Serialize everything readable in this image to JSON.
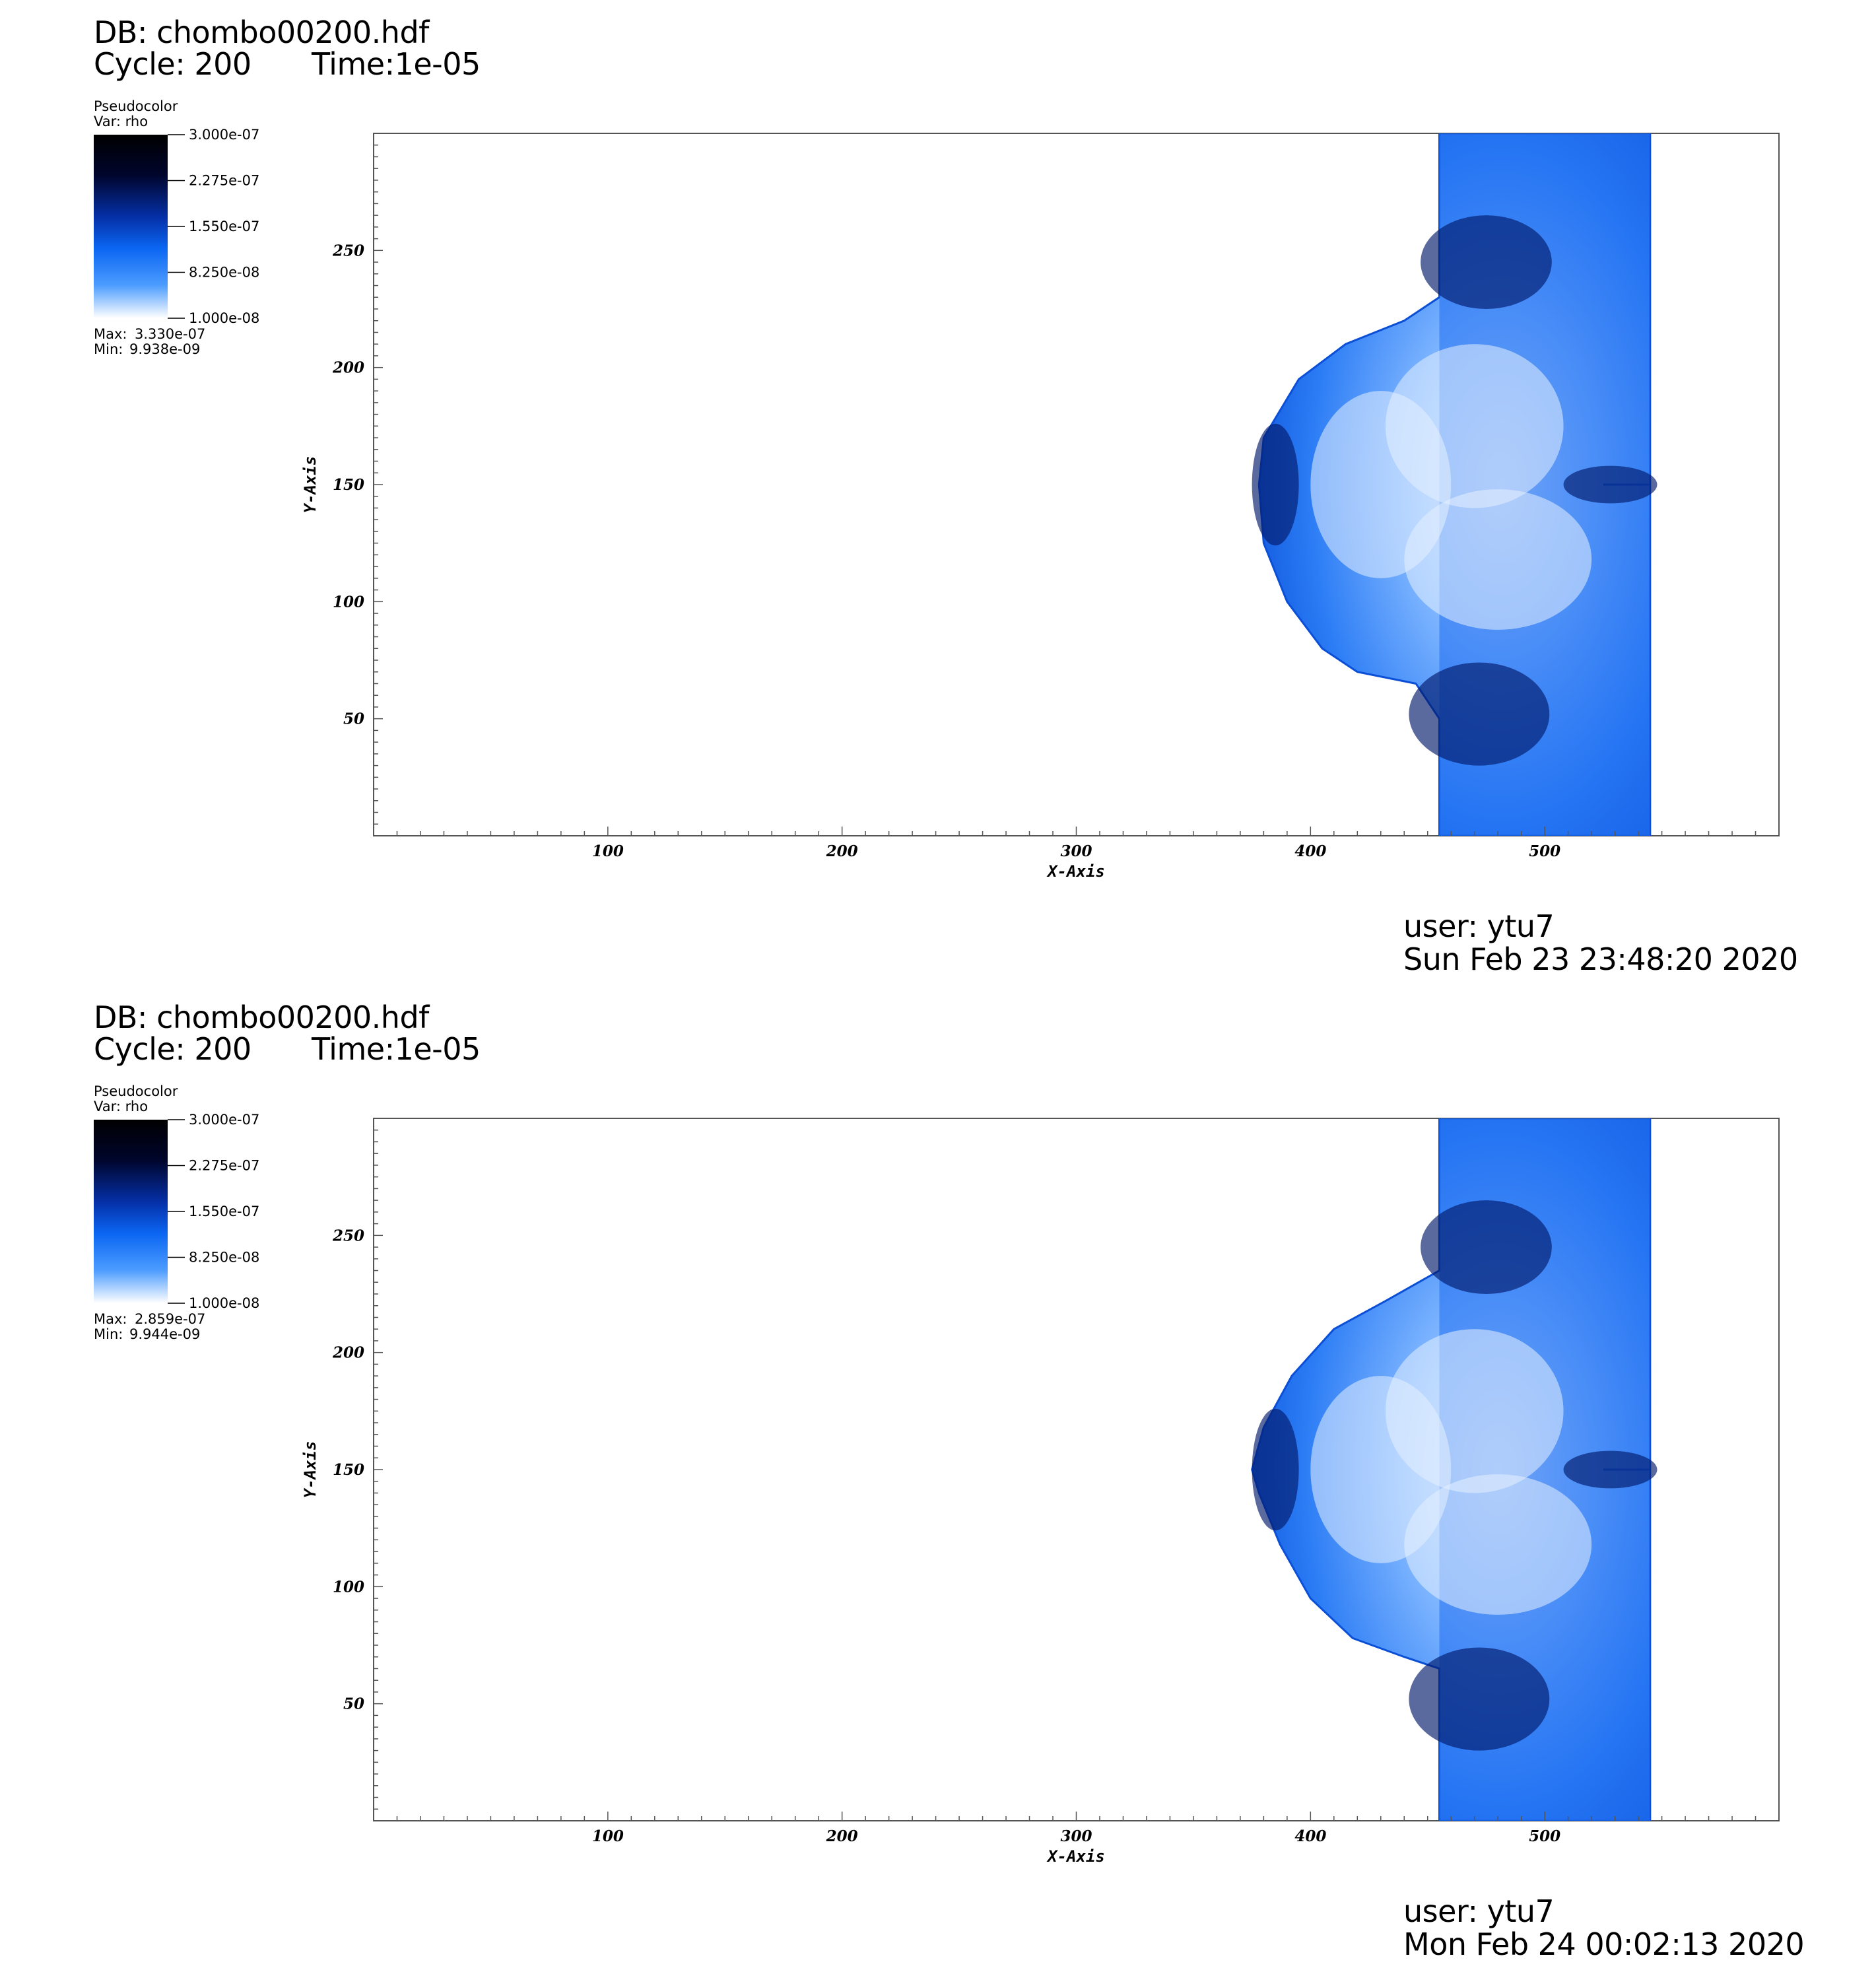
{
  "colors": {
    "accent_blue": "#0a5ee8",
    "dark_navy": "#000428",
    "white": "#ffffff"
  },
  "panels": [
    {
      "db_label": "DB: chombo00200.hdf",
      "cycle_label": "Cycle: 200",
      "time_label": "Time:1e-05",
      "legend": {
        "title": "Pseudocolor",
        "var": "Var: rho",
        "ticks": [
          "3.000e-07",
          "2.275e-07",
          "1.550e-07",
          "8.250e-08",
          "1.000e-08"
        ],
        "max_label": "Max:",
        "max_value": "3.330e-07",
        "min_label": "Min:",
        "min_value": "9.938e-09"
      },
      "user": "user: ytu7",
      "timestamp": "Sun Feb 23 23:48:20 2020"
    },
    {
      "db_label": "DB: chombo00200.hdf",
      "cycle_label": "Cycle: 200",
      "time_label": "Time:1e-05",
      "legend": {
        "title": "Pseudocolor",
        "var": "Var: rho",
        "ticks": [
          "3.000e-07",
          "2.275e-07",
          "1.550e-07",
          "8.250e-08",
          "1.000e-08"
        ],
        "max_label": "Max:",
        "max_value": "2.859e-07",
        "min_label": "Min:",
        "min_value": "9.944e-09"
      },
      "user": "user: ytu7",
      "timestamp": "Mon Feb 24 00:02:13 2020"
    }
  ],
  "chart_data": [
    {
      "type": "heatmap",
      "variable": "rho",
      "xlabel": "X-Axis",
      "ylabel": "Y-Axis",
      "xlim": [
        0,
        600
      ],
      "ylim": [
        0,
        300
      ],
      "x_ticks": [
        100,
        200,
        300,
        400,
        500
      ],
      "y_ticks": [
        50,
        100,
        150,
        200,
        250
      ],
      "colorbar_range": [
        1e-08,
        3e-07
      ],
      "data_max": 3.33e-07,
      "data_min": 9.938e-09,
      "slab_x_range": [
        455,
        545
      ],
      "bubble_left_x": 378,
      "bubble_y_range": [
        55,
        245
      ],
      "bubble_contour": [
        [
          455,
          300
        ],
        [
          545,
          300
        ],
        [
          545,
          150
        ],
        [
          525,
          150
        ],
        [
          545,
          150
        ],
        [
          545,
          0
        ],
        [
          455,
          0
        ],
        [
          455,
          50
        ],
        [
          445,
          65
        ],
        [
          420,
          70
        ],
        [
          405,
          80
        ],
        [
          390,
          100
        ],
        [
          380,
          125
        ],
        [
          378,
          150
        ],
        [
          380,
          170
        ],
        [
          395,
          195
        ],
        [
          415,
          210
        ],
        [
          440,
          220
        ],
        [
          455,
          230
        ],
        [
          455,
          300
        ]
      ]
    },
    {
      "type": "heatmap",
      "variable": "rho",
      "xlabel": "X-Axis",
      "ylabel": "Y-Axis",
      "xlim": [
        0,
        600
      ],
      "ylim": [
        0,
        300
      ],
      "x_ticks": [
        100,
        200,
        300,
        400,
        500
      ],
      "y_ticks": [
        50,
        100,
        150,
        200,
        250
      ],
      "colorbar_range": [
        1e-08,
        3e-07
      ],
      "data_max": 2.859e-07,
      "data_min": 9.944e-09,
      "slab_x_range": [
        455,
        545
      ],
      "bubble_left_x": 375,
      "bubble_y_range": [
        60,
        240
      ],
      "bubble_contour": [
        [
          455,
          300
        ],
        [
          545,
          300
        ],
        [
          545,
          150
        ],
        [
          525,
          150
        ],
        [
          545,
          150
        ],
        [
          545,
          0
        ],
        [
          455,
          0
        ],
        [
          455,
          65
        ],
        [
          440,
          70
        ],
        [
          418,
          78
        ],
        [
          400,
          95
        ],
        [
          387,
          118
        ],
        [
          378,
          140
        ],
        [
          375,
          150
        ],
        [
          380,
          168
        ],
        [
          392,
          190
        ],
        [
          410,
          210
        ],
        [
          432,
          222
        ],
        [
          455,
          235
        ],
        [
          455,
          300
        ]
      ]
    }
  ]
}
